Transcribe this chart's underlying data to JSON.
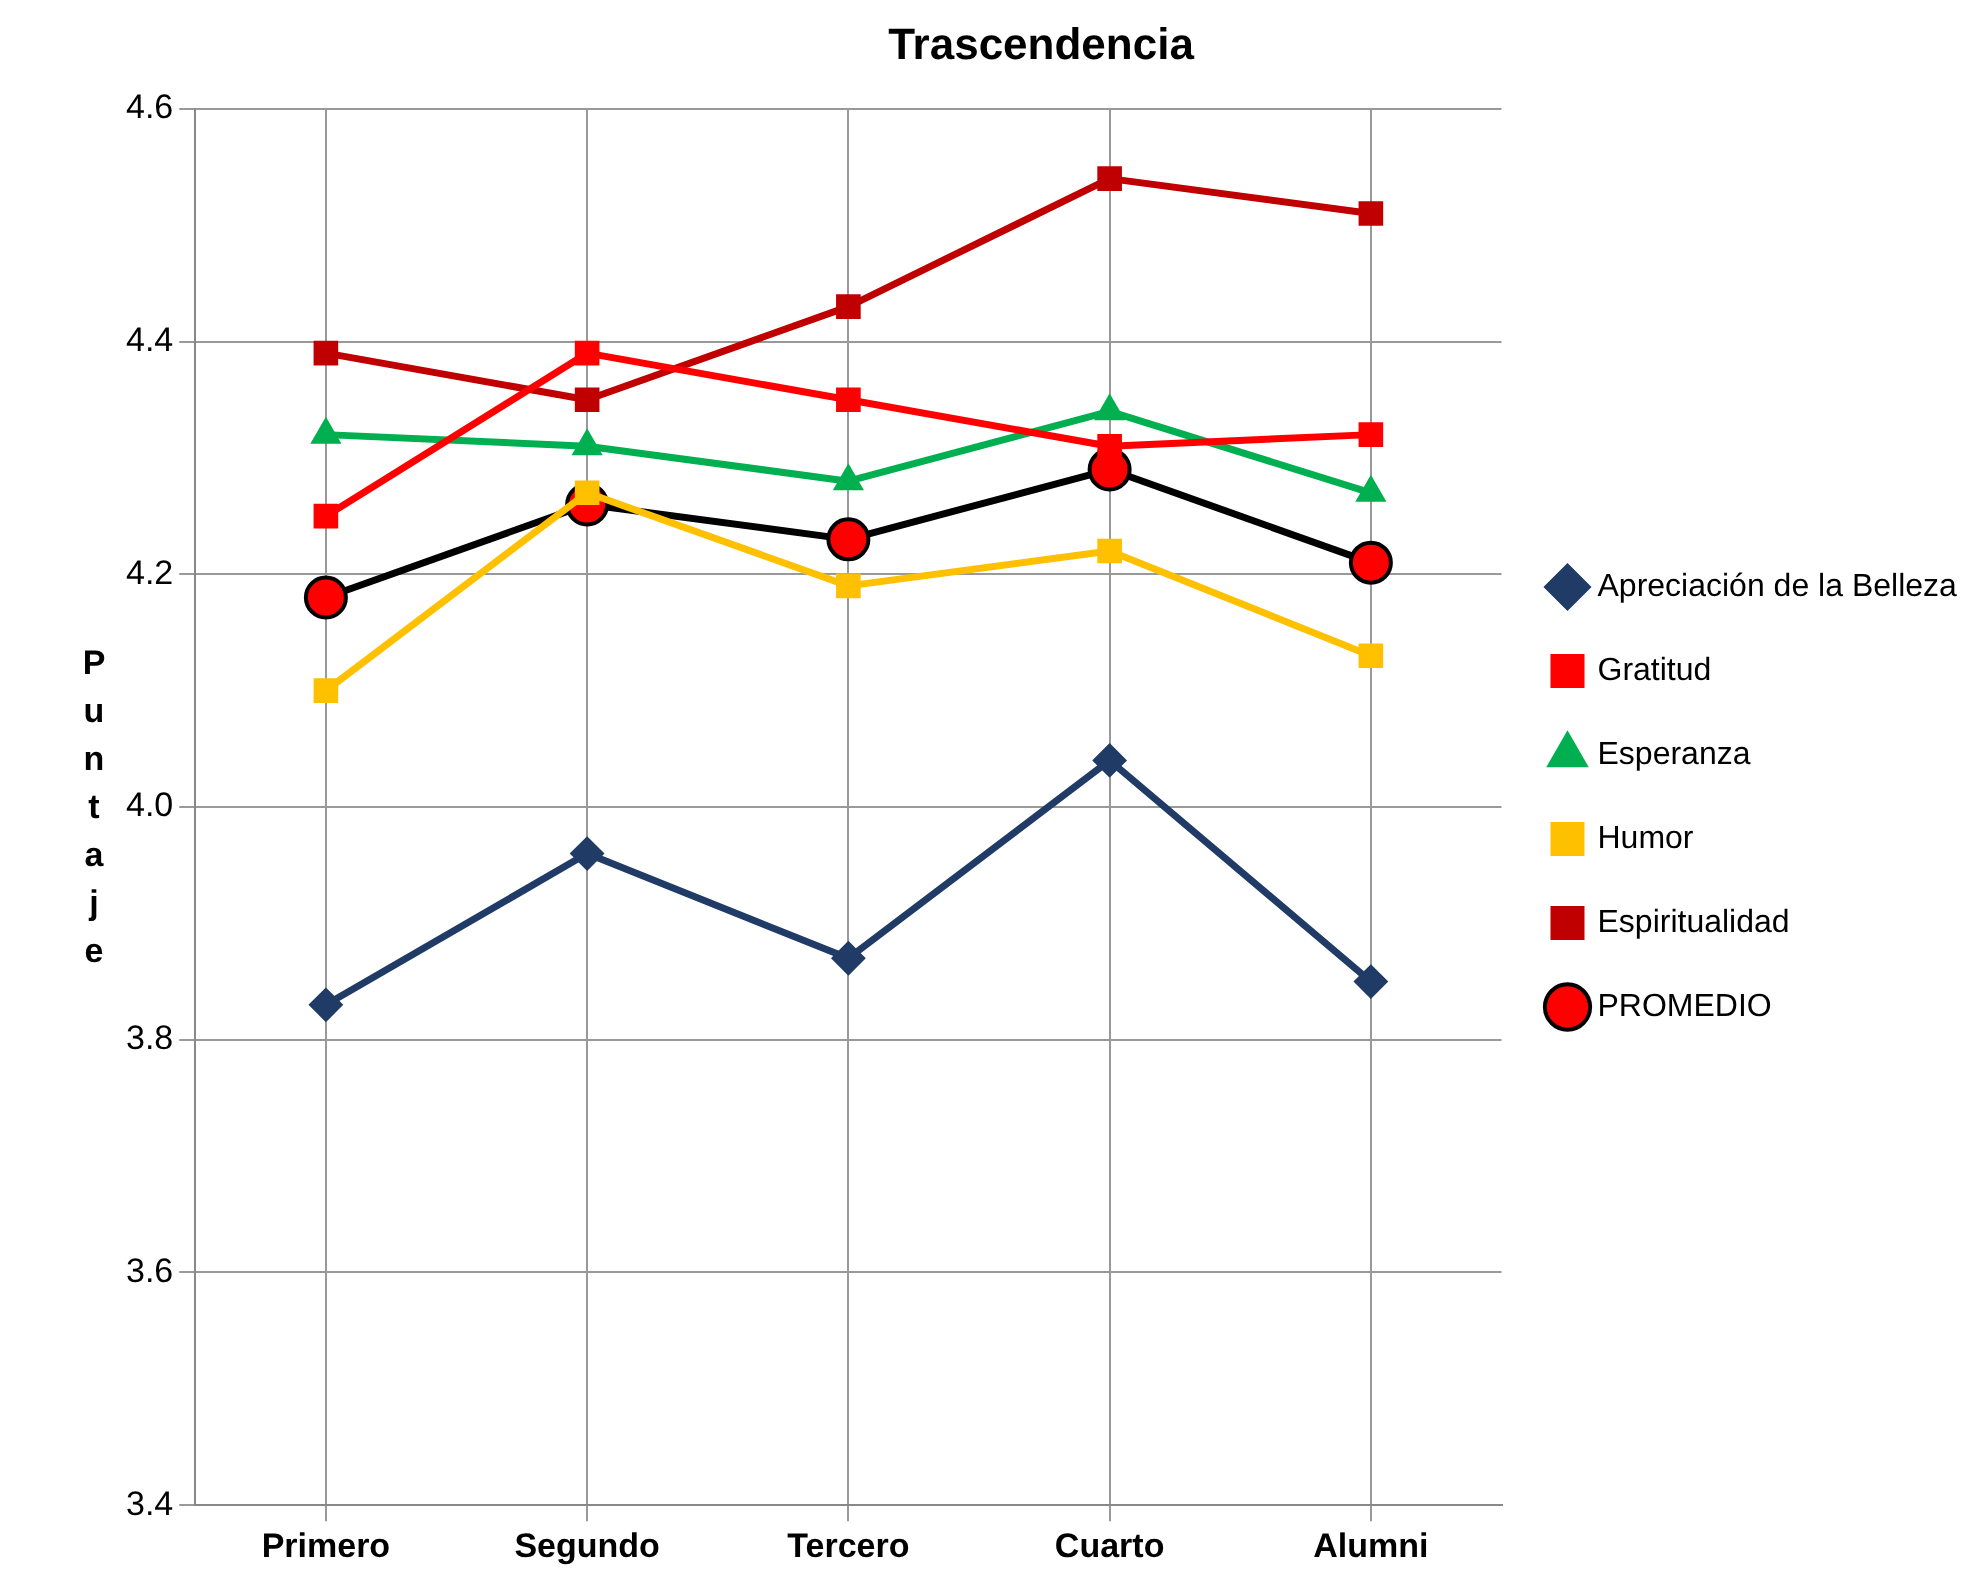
{
  "chart_data": {
    "type": "line",
    "title": "Trascendencia",
    "ylabel": "Puntaje",
    "categories": [
      "Primero",
      "Segundo",
      "Tercero",
      "Cuarto",
      "Alumni"
    ],
    "series": [
      {
        "name": "Apreciación de la Belleza",
        "color": "#1f3b66",
        "marker": "diamond",
        "values": [
          3.83,
          3.96,
          3.87,
          4.04,
          3.85
        ]
      },
      {
        "name": "Gratitud",
        "color": "#ff0000",
        "marker": "square",
        "values": [
          4.25,
          4.39,
          4.35,
          4.31,
          4.32
        ]
      },
      {
        "name": "Esperanza",
        "color": "#00b050",
        "marker": "triangle",
        "values": [
          4.32,
          4.31,
          4.28,
          4.34,
          4.27
        ]
      },
      {
        "name": "Humor",
        "color": "#ffc000",
        "marker": "square",
        "values": [
          4.1,
          4.27,
          4.19,
          4.22,
          4.13
        ]
      },
      {
        "name": "Espiritualidad",
        "color": "#c00000",
        "marker": "square",
        "values": [
          4.39,
          4.35,
          4.43,
          4.54,
          4.51
        ]
      },
      {
        "name": "PROMEDIO",
        "color": "#000000",
        "colors": [
          "#ff0000",
          "#ff0000",
          "#ff0000",
          "#ff0000",
          "#ff0000"
        ],
        "marker": "circle",
        "values": [
          4.18,
          4.26,
          4.23,
          4.29,
          4.21
        ]
      }
    ],
    "ylim": [
      3.4,
      4.6
    ],
    "yticks": [
      {
        "value": 3.4,
        "label": "3.4"
      },
      {
        "value": 3.6,
        "label": "3.6"
      },
      {
        "value": 3.8,
        "label": "3.8"
      },
      {
        "value": 4.0,
        "label": "4.0"
      },
      {
        "value": 4.2,
        "label": "4.2"
      },
      {
        "value": 4.4,
        "label": "4.4"
      },
      {
        "value": 4.6,
        "label": "4.6"
      }
    ],
    "grid": true,
    "legend": "right",
    "line_style": "solid"
  }
}
